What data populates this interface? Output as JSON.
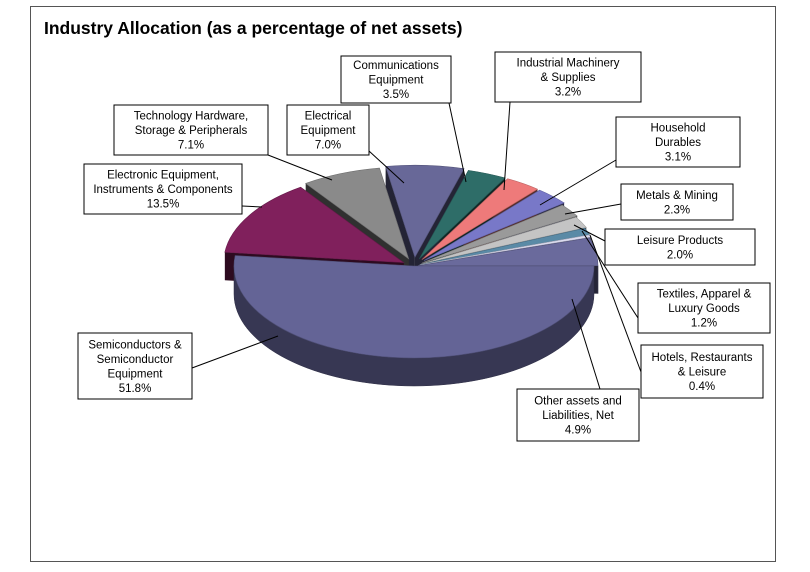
{
  "chart_data": {
    "type": "pie",
    "title": "Industry Allocation (as a percentage of net assets)",
    "slices": [
      {
        "name": "Semiconductors & Semiconductor Equipment",
        "label_lines": [
          "Semiconductors &",
          "Semiconductor",
          "Equipment"
        ],
        "value_label": "51.8%",
        "value": 51.8,
        "color": "#646496"
      },
      {
        "name": "Electronic Equipment, Instruments & Components",
        "label_lines": [
          "Electronic Equipment,",
          "Instruments & Components"
        ],
        "value_label": "13.5%",
        "value": 13.5,
        "color": "#80205c"
      },
      {
        "name": "Technology Hardware, Storage & Peripherals",
        "label_lines": [
          "Technology Hardware,",
          "Storage & Peripherals"
        ],
        "value_label": "7.1%",
        "value": 7.1,
        "color": "#8a8a8a"
      },
      {
        "name": "Electrical Equipment",
        "label_lines": [
          "Electrical",
          "Equipment"
        ],
        "value_label": "7.0%",
        "value": 7.0,
        "color": "#686898"
      },
      {
        "name": "Communications Equipment",
        "label_lines": [
          "Communications",
          "Equipment"
        ],
        "value_label": "3.5%",
        "value": 3.5,
        "color": "#2e6d68"
      },
      {
        "name": "Industrial Machinery & Supplies",
        "label_lines": [
          "Industrial Machinery",
          "& Supplies"
        ],
        "value_label": "3.2%",
        "value": 3.2,
        "color": "#ee7a7a"
      },
      {
        "name": "Household Durables",
        "label_lines": [
          "Household",
          "Durables"
        ],
        "value_label": "3.1%",
        "value": 3.1,
        "color": "#7878c8"
      },
      {
        "name": "Metals & Mining",
        "label_lines": [
          "Metals & Mining"
        ],
        "value_label": "2.3%",
        "value": 2.3,
        "color": "#9a9a9a"
      },
      {
        "name": "Leisure Products",
        "label_lines": [
          "Leisure Products"
        ],
        "value_label": "2.0%",
        "value": 2.0,
        "color": "#c4c4c4"
      },
      {
        "name": "Textiles, Apparel & Luxury Goods",
        "label_lines": [
          "Textiles, Apparel &",
          "Luxury Goods"
        ],
        "value_label": "1.2%",
        "value": 1.2,
        "color": "#5a8aa6"
      },
      {
        "name": "Hotels, Restaurants & Leisure",
        "label_lines": [
          "Hotels, Restaurants",
          "& Leisure"
        ],
        "value_label": "0.4%",
        "value": 0.4,
        "color": "#dcdcf0"
      },
      {
        "name": "Other assets and Liabilities, Net",
        "label_lines": [
          "Other assets and",
          "Liabilities, Net"
        ],
        "value_label": "4.9%",
        "value": 4.9,
        "color": "#6a6a9c"
      }
    ]
  }
}
